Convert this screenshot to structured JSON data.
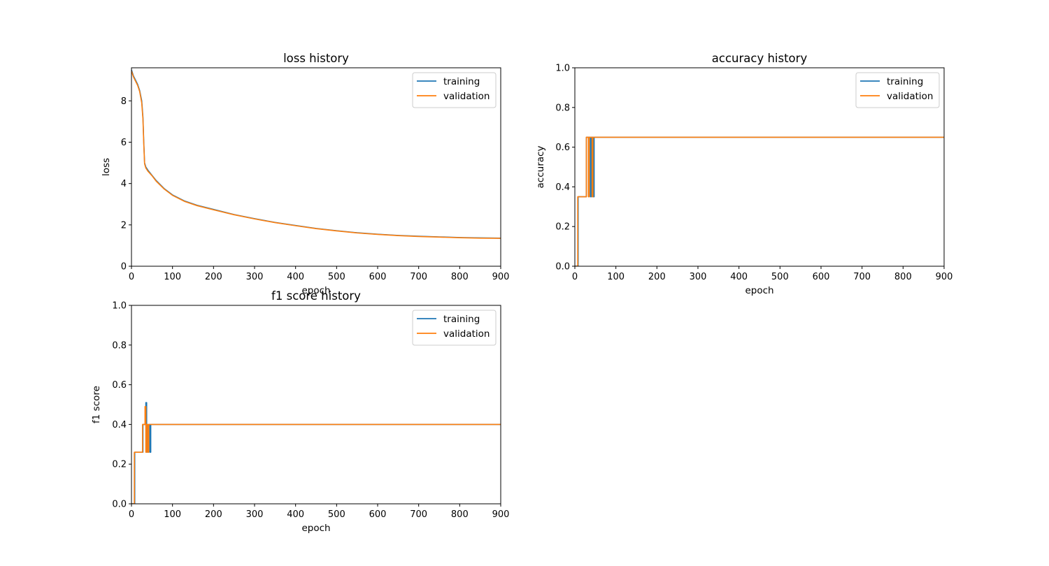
{
  "chart_data": [
    {
      "type": "line",
      "title": "loss history",
      "xlabel": "epoch",
      "ylabel": "loss",
      "xlim": [
        0,
        900
      ],
      "ylim": [
        0,
        9.6
      ],
      "xticks": [
        0,
        100,
        200,
        300,
        400,
        500,
        600,
        700,
        800,
        900
      ],
      "yticks": [
        0,
        2,
        4,
        6,
        8
      ],
      "legend": "top-right",
      "series": [
        {
          "name": "training",
          "color": "#1f77b4",
          "x": [
            0,
            5,
            10,
            15,
            20,
            25,
            28,
            30,
            32,
            35,
            40,
            50,
            60,
            80,
            100,
            130,
            160,
            200,
            250,
            300,
            350,
            400,
            450,
            500,
            550,
            600,
            650,
            700,
            750,
            800,
            850,
            900
          ],
          "y": [
            9.5,
            9.2,
            9.0,
            8.8,
            8.5,
            8.0,
            7.2,
            6.0,
            5.0,
            4.8,
            4.65,
            4.4,
            4.15,
            3.75,
            3.45,
            3.15,
            2.95,
            2.75,
            2.5,
            2.3,
            2.12,
            1.97,
            1.83,
            1.72,
            1.62,
            1.55,
            1.49,
            1.45,
            1.42,
            1.39,
            1.37,
            1.36
          ]
        },
        {
          "name": "validation",
          "color": "#ff7f0e",
          "x": [
            0,
            5,
            10,
            15,
            20,
            25,
            28,
            30,
            32,
            35,
            40,
            50,
            60,
            80,
            100,
            130,
            160,
            200,
            250,
            300,
            350,
            400,
            450,
            500,
            550,
            600,
            650,
            700,
            750,
            800,
            850,
            900
          ],
          "y": [
            9.45,
            9.15,
            8.95,
            8.75,
            8.45,
            7.9,
            7.1,
            5.9,
            4.95,
            4.75,
            4.6,
            4.38,
            4.12,
            3.73,
            3.43,
            3.13,
            2.93,
            2.73,
            2.49,
            2.29,
            2.11,
            1.96,
            1.82,
            1.71,
            1.61,
            1.54,
            1.48,
            1.44,
            1.41,
            1.38,
            1.36,
            1.35
          ]
        }
      ]
    },
    {
      "type": "line",
      "title": "accuracy history",
      "xlabel": "epoch",
      "ylabel": "accuracy",
      "xlim": [
        0,
        900
      ],
      "ylim": [
        0,
        1.0
      ],
      "xticks": [
        0,
        100,
        200,
        300,
        400,
        500,
        600,
        700,
        800,
        900
      ],
      "yticks": [
        0.0,
        0.2,
        0.4,
        0.6,
        0.8,
        1.0
      ],
      "legend": "top-right",
      "series": [
        {
          "name": "training",
          "color": "#1f77b4",
          "x": [
            0,
            8,
            8,
            10,
            10,
            28,
            28,
            30,
            30,
            38,
            38,
            40,
            40,
            45,
            45,
            47,
            47,
            900
          ],
          "y": [
            0.0,
            0.0,
            0.35,
            0.35,
            0.35,
            0.35,
            0.65,
            0.65,
            0.65,
            0.65,
            0.35,
            0.35,
            0.65,
            0.65,
            0.35,
            0.35,
            0.65,
            0.65
          ]
        },
        {
          "name": "validation",
          "color": "#ff7f0e",
          "x": [
            0,
            7,
            7,
            28,
            28,
            33,
            33,
            35,
            35,
            42,
            42,
            44,
            44,
            900
          ],
          "y": [
            0.0,
            0.0,
            0.35,
            0.35,
            0.65,
            0.65,
            0.35,
            0.35,
            0.65,
            0.65,
            0.35,
            0.35,
            0.65,
            0.65
          ]
        }
      ]
    },
    {
      "type": "line",
      "title": "f1 score history",
      "xlabel": "epoch",
      "ylabel": "f1 score",
      "xlim": [
        0,
        900
      ],
      "ylim": [
        0,
        1.0
      ],
      "xticks": [
        0,
        100,
        200,
        300,
        400,
        500,
        600,
        700,
        800,
        900
      ],
      "yticks": [
        0.0,
        0.2,
        0.4,
        0.6,
        0.8,
        1.0
      ],
      "legend": "top-right",
      "series": [
        {
          "name": "training",
          "color": "#1f77b4",
          "x": [
            0,
            8,
            8,
            28,
            28,
            35,
            35,
            37,
            37,
            39,
            39,
            42,
            42,
            45,
            45,
            47,
            47,
            900
          ],
          "y": [
            0.0,
            0.0,
            0.26,
            0.26,
            0.4,
            0.4,
            0.51,
            0.51,
            0.4,
            0.4,
            0.26,
            0.26,
            0.4,
            0.4,
            0.26,
            0.26,
            0.4,
            0.4
          ]
        },
        {
          "name": "validation",
          "color": "#ff7f0e",
          "x": [
            0,
            7,
            7,
            27,
            27,
            33,
            33,
            35,
            35,
            37,
            37,
            40,
            40,
            42,
            42,
            900
          ],
          "y": [
            0.0,
            0.0,
            0.26,
            0.26,
            0.4,
            0.4,
            0.49,
            0.49,
            0.26,
            0.26,
            0.4,
            0.4,
            0.26,
            0.26,
            0.4,
            0.4
          ]
        }
      ]
    }
  ]
}
